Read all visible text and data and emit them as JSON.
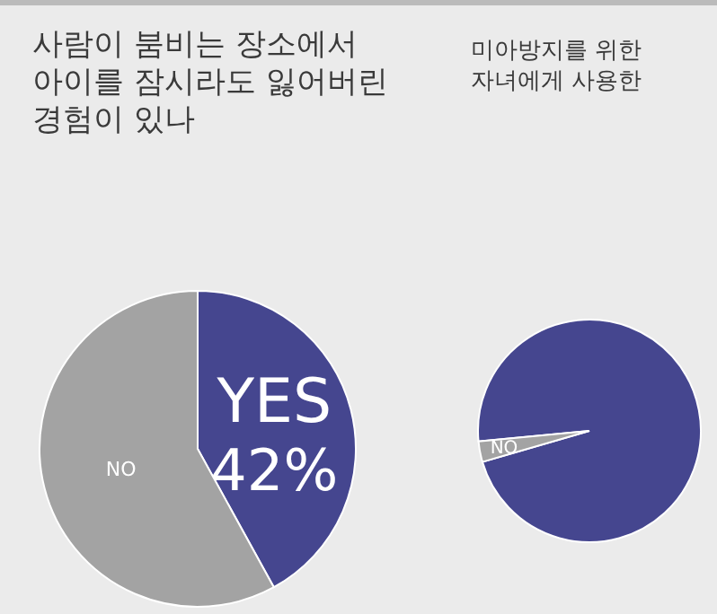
{
  "chart_data": [
    {
      "type": "pie",
      "title": "사람이 붐비는 장소에서\n아이를 잠시라도 잃어버린\n경험이 있나",
      "categories": [
        "YES",
        "NO"
      ],
      "values": [
        42,
        58
      ],
      "colors": [
        "#45468f",
        "#a3a3a3"
      ],
      "value_labels": [
        "42%",
        null
      ]
    },
    {
      "type": "pie",
      "title": "미아방지를 위한\n자녀에게 사용한",
      "categories": [
        null,
        "NO"
      ],
      "values": [
        97,
        3
      ],
      "colors": [
        "#45468f",
        "#a3a3a3"
      ]
    }
  ]
}
